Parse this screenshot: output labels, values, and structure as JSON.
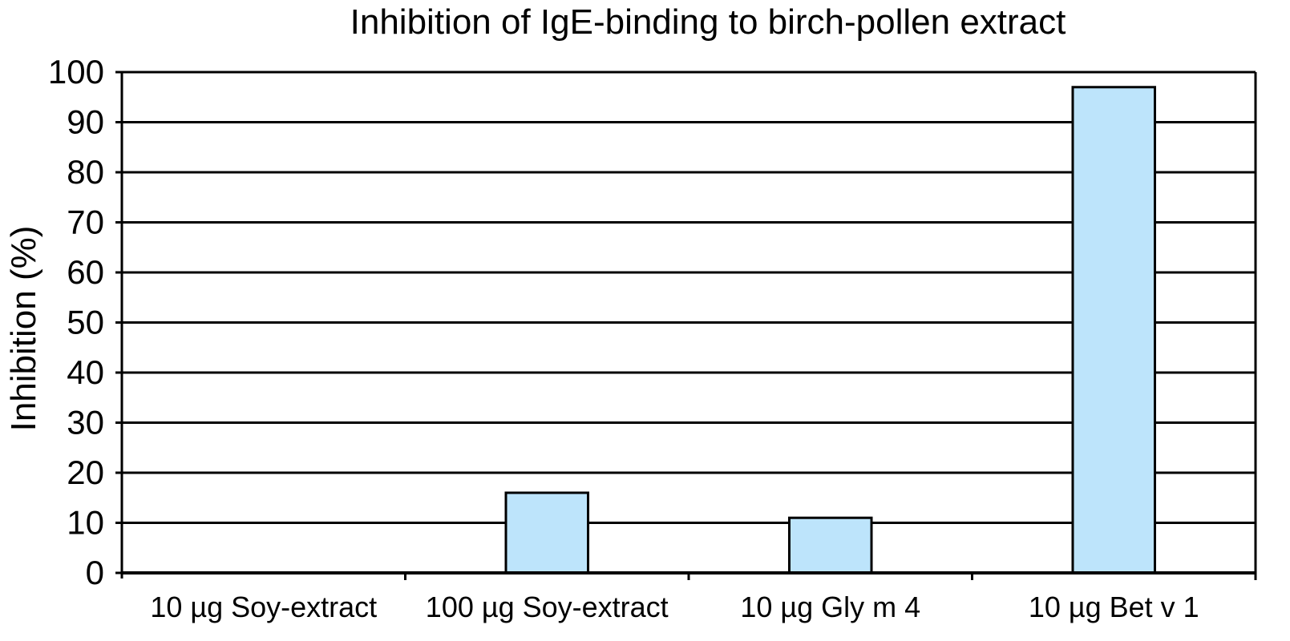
{
  "chart_data": {
    "type": "bar",
    "title": "Inhibition of IgE-binding to birch-pollen extract",
    "xlabel": "",
    "ylabel": "Inhibition (%)",
    "categories": [
      "10 µg Soy-extract",
      "100 µg Soy-extract",
      "10 µg Gly m 4",
      "10 µg Bet v 1"
    ],
    "values": [
      0,
      16,
      11,
      97
    ],
    "ylim": [
      0,
      100
    ],
    "yticks": [
      0,
      10,
      20,
      30,
      40,
      50,
      60,
      70,
      80,
      90,
      100
    ],
    "grid": true,
    "legend": "none",
    "bar_color": "#bde4fb",
    "bar_edge_color": "#000000"
  }
}
